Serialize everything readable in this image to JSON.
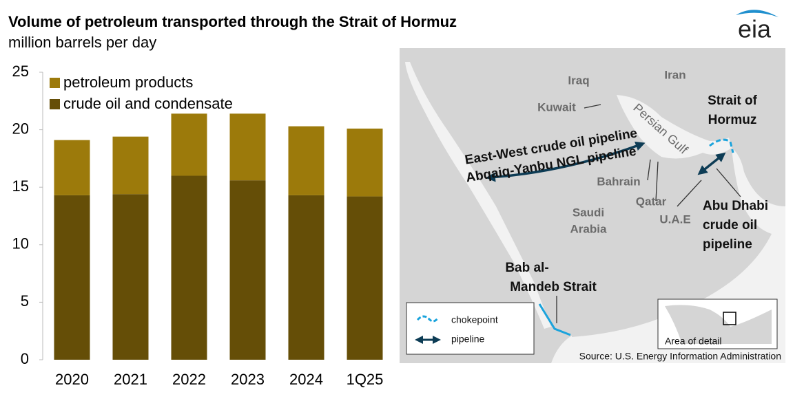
{
  "logo": "eia",
  "chart_data": {
    "type": "bar",
    "stacked": true,
    "title": "Volume of petroleum transported through the Strait of Hormuz",
    "subtitle": "million barrels per day",
    "categories": [
      "2020",
      "2021",
      "2022",
      "2023",
      "2024",
      "1Q25"
    ],
    "series": [
      {
        "name": "crude oil and condensate",
        "color": "#654e07",
        "values": [
          14.3,
          14.4,
          16.0,
          15.6,
          14.3,
          14.2
        ]
      },
      {
        "name": "petroleum products",
        "color": "#9c7a0b",
        "values": [
          4.8,
          5.0,
          5.4,
          5.8,
          6.0,
          5.9
        ]
      }
    ],
    "ylim": [
      0,
      25
    ],
    "yticks": [
      0,
      5,
      10,
      15,
      20,
      25
    ],
    "grid": false,
    "legend": "top-left"
  },
  "map": {
    "labels": [
      [
        "Iraq"
      ],
      [
        "Iran"
      ],
      [
        "Kuwait"
      ],
      [
        "Persian Gulf"
      ],
      [
        "Strait of",
        "Hormuz"
      ],
      [
        "East-West crude oil pipeline"
      ],
      [
        "Abqaiq-Yanbu NGL pipeline"
      ],
      [
        "Bahrain"
      ],
      [
        "Qatar"
      ],
      [
        "Saudi",
        "Arabia"
      ],
      [
        "U.A.E"
      ],
      [
        "Abu Dhabi",
        "crude oil",
        "pipeline"
      ],
      [
        "Bab al-",
        "Mandeb Strait"
      ]
    ],
    "legend": [
      "chokepoint",
      "pipeline"
    ],
    "inset_label": "Area of detail",
    "source": "Source: U.S. Energy Information Administration"
  }
}
